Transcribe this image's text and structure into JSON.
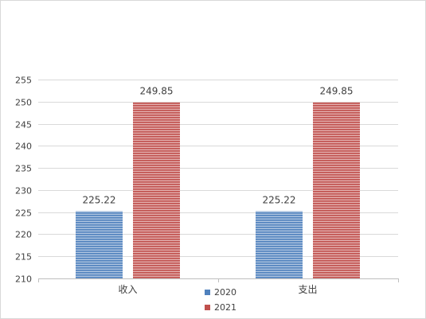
{
  "chart_data": {
    "type": "bar",
    "categories": [
      "收入",
      "支出"
    ],
    "series": [
      {
        "name": "2020",
        "values": [
          225.22,
          225.22
        ],
        "color": "#4f81bd"
      },
      {
        "name": "2021",
        "values": [
          249.85,
          249.85
        ],
        "color": "#c0504d"
      }
    ],
    "data_labels": [
      [
        "225.22",
        "225.22"
      ],
      [
        "249.85",
        "249.85"
      ]
    ],
    "ylim": [
      210,
      255
    ],
    "yticks": [
      210,
      215,
      220,
      225,
      230,
      235,
      240,
      245,
      250,
      255
    ],
    "title": "",
    "xlabel": "",
    "ylabel": "",
    "grid": true,
    "legend_position": "bottom",
    "bar_pattern": "horizontal-stripes"
  }
}
